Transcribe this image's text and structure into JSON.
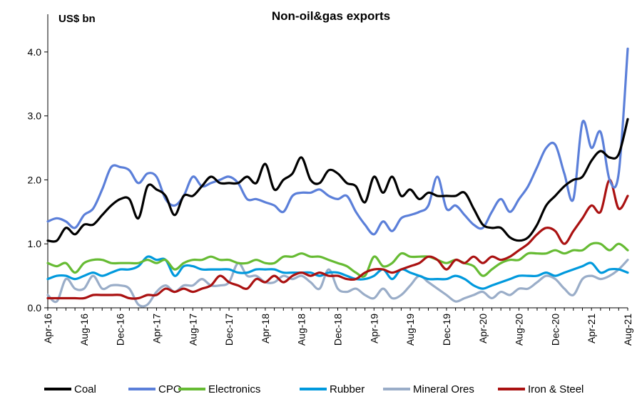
{
  "chart_data": {
    "type": "line",
    "title": "Non-oil&gas exports",
    "ylabel": "US$ bn",
    "xlabel": "",
    "ylim": [
      0,
      4.5
    ],
    "yticks": [
      "0.0",
      "1.0",
      "2.0",
      "3.0",
      "4.0"
    ],
    "x": [
      "Apr-16",
      "May-16",
      "Jun-16",
      "Jul-16",
      "Aug-16",
      "Sep-16",
      "Oct-16",
      "Nov-16",
      "Dec-16",
      "Jan-17",
      "Feb-17",
      "Mar-17",
      "Apr-17",
      "May-17",
      "Jun-17",
      "Jul-17",
      "Aug-17",
      "Sep-17",
      "Oct-17",
      "Nov-17",
      "Dec-17",
      "Jan-18",
      "Feb-18",
      "Mar-18",
      "Apr-18",
      "May-18",
      "Jun-18",
      "Jul-18",
      "Aug-18",
      "Sep-18",
      "Oct-18",
      "Nov-18",
      "Dec-18",
      "Jan-19",
      "Feb-19",
      "Mar-19",
      "Apr-19",
      "May-19",
      "Jun-19",
      "Jul-19",
      "Aug-19",
      "Sep-19",
      "Oct-19",
      "Nov-19",
      "Dec-19",
      "Jan-20",
      "Feb-20",
      "Mar-20",
      "Apr-20",
      "May-20",
      "Jun-20",
      "Jul-20",
      "Aug-20",
      "Sep-20",
      "Oct-20",
      "Nov-20",
      "Dec-20",
      "Jan-21",
      "Feb-21",
      "Mar-21",
      "Apr-21",
      "May-21",
      "Jun-21",
      "Jul-21",
      "Aug-21"
    ],
    "xticks": [
      "Apr-16",
      "Aug-16",
      "Dec-16",
      "Apr-17",
      "Aug-17",
      "Dec-17",
      "Apr-18",
      "Aug-18",
      "Dec-18",
      "Apr-19",
      "Aug-19",
      "Dec-19",
      "Apr-20",
      "Aug-20",
      "Dec-20",
      "Apr-21",
      "Aug-21"
    ],
    "legend_position": "bottom",
    "series": [
      {
        "name": "Coal",
        "color": "#000000",
        "values": [
          1.05,
          1.05,
          1.25,
          1.15,
          1.3,
          1.3,
          1.45,
          1.6,
          1.7,
          1.7,
          1.4,
          1.9,
          1.85,
          1.75,
          1.45,
          1.75,
          1.75,
          1.9,
          2.05,
          1.95,
          1.95,
          1.95,
          2.05,
          1.95,
          2.25,
          1.85,
          2.0,
          2.1,
          2.35,
          2.0,
          1.95,
          2.15,
          2.1,
          1.95,
          1.9,
          1.65,
          2.05,
          1.8,
          2.05,
          1.75,
          1.85,
          1.7,
          1.8,
          1.75,
          1.75,
          1.75,
          1.8,
          1.55,
          1.3,
          1.25,
          1.25,
          1.1,
          1.05,
          1.1,
          1.3,
          1.6,
          1.75,
          1.9,
          2.0,
          2.05,
          2.3,
          2.45,
          2.35,
          2.4,
          2.95
        ]
      },
      {
        "name": "CPO",
        "color": "#5B7FD9",
        "values": [
          1.35,
          1.4,
          1.35,
          1.25,
          1.45,
          1.55,
          1.85,
          2.2,
          2.2,
          2.15,
          1.95,
          2.1,
          2.05,
          1.7,
          1.6,
          1.75,
          2.05,
          1.9,
          1.95,
          2.0,
          2.05,
          1.95,
          1.7,
          1.7,
          1.65,
          1.6,
          1.5,
          1.75,
          1.8,
          1.8,
          1.85,
          1.75,
          1.7,
          1.75,
          1.5,
          1.3,
          1.15,
          1.35,
          1.2,
          1.4,
          1.45,
          1.5,
          1.6,
          2.05,
          1.55,
          1.6,
          1.45,
          1.3,
          1.25,
          1.5,
          1.7,
          1.5,
          1.7,
          1.9,
          2.2,
          2.5,
          2.55,
          2.1,
          1.7,
          2.9,
          2.5,
          2.75,
          2.0,
          2.1,
          4.05
        ]
      },
      {
        "name": "Electronics",
        "color": "#66BB33",
        "values": [
          0.7,
          0.65,
          0.7,
          0.55,
          0.7,
          0.75,
          0.75,
          0.7,
          0.7,
          0.7,
          0.7,
          0.75,
          0.7,
          0.75,
          0.6,
          0.7,
          0.75,
          0.75,
          0.8,
          0.75,
          0.75,
          0.7,
          0.7,
          0.75,
          0.7,
          0.7,
          0.8,
          0.8,
          0.85,
          0.8,
          0.8,
          0.75,
          0.7,
          0.65,
          0.55,
          0.5,
          0.8,
          0.65,
          0.7,
          0.85,
          0.8,
          0.8,
          0.8,
          0.75,
          0.7,
          0.75,
          0.7,
          0.65,
          0.5,
          0.6,
          0.7,
          0.75,
          0.75,
          0.85,
          0.85,
          0.85,
          0.9,
          0.85,
          0.9,
          0.9,
          1.0,
          1.0,
          0.9,
          1.0,
          0.9
        ]
      },
      {
        "name": "Rubber",
        "color": "#0099DD",
        "values": [
          0.45,
          0.5,
          0.5,
          0.45,
          0.5,
          0.55,
          0.5,
          0.55,
          0.6,
          0.6,
          0.65,
          0.8,
          0.75,
          0.75,
          0.5,
          0.65,
          0.65,
          0.6,
          0.6,
          0.6,
          0.6,
          0.55,
          0.55,
          0.6,
          0.6,
          0.6,
          0.55,
          0.55,
          0.55,
          0.55,
          0.5,
          0.55,
          0.55,
          0.5,
          0.45,
          0.45,
          0.5,
          0.6,
          0.45,
          0.6,
          0.55,
          0.5,
          0.45,
          0.45,
          0.45,
          0.5,
          0.45,
          0.35,
          0.3,
          0.35,
          0.4,
          0.45,
          0.5,
          0.5,
          0.5,
          0.55,
          0.5,
          0.55,
          0.6,
          0.65,
          0.7,
          0.55,
          0.6,
          0.6,
          0.55
        ]
      },
      {
        "name": "Mineral Ores",
        "color": "#9AADC8",
        "values": [
          0.2,
          0.1,
          0.45,
          0.3,
          0.3,
          0.5,
          0.3,
          0.35,
          0.35,
          0.3,
          0.05,
          0.05,
          0.25,
          0.35,
          0.25,
          0.35,
          0.35,
          0.45,
          0.35,
          0.35,
          0.4,
          0.7,
          0.5,
          0.5,
          0.4,
          0.4,
          0.5,
          0.45,
          0.5,
          0.4,
          0.3,
          0.6,
          0.3,
          0.25,
          0.3,
          0.2,
          0.15,
          0.3,
          0.15,
          0.2,
          0.35,
          0.5,
          0.4,
          0.3,
          0.2,
          0.1,
          0.15,
          0.2,
          0.25,
          0.15,
          0.25,
          0.2,
          0.3,
          0.3,
          0.4,
          0.5,
          0.45,
          0.3,
          0.2,
          0.45,
          0.5,
          0.45,
          0.5,
          0.6,
          0.75
        ]
      },
      {
        "name": "Iron & Steel",
        "color": "#AA1111",
        "values": [
          0.15,
          0.15,
          0.15,
          0.15,
          0.15,
          0.2,
          0.2,
          0.2,
          0.2,
          0.15,
          0.15,
          0.2,
          0.2,
          0.3,
          0.25,
          0.3,
          0.25,
          0.3,
          0.35,
          0.5,
          0.4,
          0.35,
          0.3,
          0.45,
          0.4,
          0.5,
          0.4,
          0.5,
          0.55,
          0.5,
          0.55,
          0.5,
          0.5,
          0.45,
          0.45,
          0.55,
          0.6,
          0.6,
          0.55,
          0.6,
          0.65,
          0.7,
          0.8,
          0.75,
          0.6,
          0.75,
          0.7,
          0.8,
          0.7,
          0.8,
          0.75,
          0.8,
          0.9,
          1.0,
          1.15,
          1.25,
          1.2,
          1.0,
          1.2,
          1.4,
          1.6,
          1.5,
          2.0,
          1.55,
          1.75
        ]
      }
    ]
  }
}
